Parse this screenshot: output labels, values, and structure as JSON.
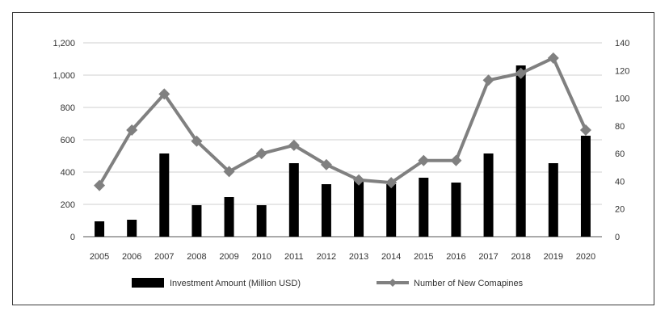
{
  "chart_data": {
    "type": "bar+line",
    "categories": [
      "2005",
      "2006",
      "2007",
      "2008",
      "2009",
      "2010",
      "2011",
      "2012",
      "2013",
      "2014",
      "2015",
      "2016",
      "2017",
      "2018",
      "2019",
      "2020"
    ],
    "series": [
      {
        "name": "Investment Amount (Million USD)",
        "type": "bar",
        "axis": "left",
        "color": "#000000",
        "values": [
          95,
          105,
          515,
          195,
          245,
          195,
          455,
          325,
          355,
          325,
          365,
          335,
          515,
          1060,
          455,
          625
        ]
      },
      {
        "name": "Number of New Comapines",
        "type": "line",
        "axis": "right",
        "color": "#808080",
        "marker": "diamond",
        "values": [
          37,
          77,
          103,
          69,
          47,
          60,
          66,
          52,
          41,
          39,
          55,
          55,
          113,
          118,
          129,
          77
        ]
      }
    ],
    "y_left": {
      "ylim": [
        0,
        1200
      ],
      "ticks": [
        0,
        200,
        400,
        600,
        800,
        1000,
        1200
      ],
      "tick_labels": [
        "0",
        "200",
        "400",
        "600",
        "800",
        "1,000",
        "1,200"
      ]
    },
    "y_right": {
      "ylim": [
        0,
        140
      ],
      "ticks": [
        0,
        20,
        40,
        60,
        80,
        100,
        120,
        140
      ],
      "tick_labels": [
        "0",
        "20",
        "40",
        "60",
        "80",
        "100",
        "120",
        "140"
      ]
    },
    "grid": "horizontal",
    "legend": "bottom-center"
  }
}
